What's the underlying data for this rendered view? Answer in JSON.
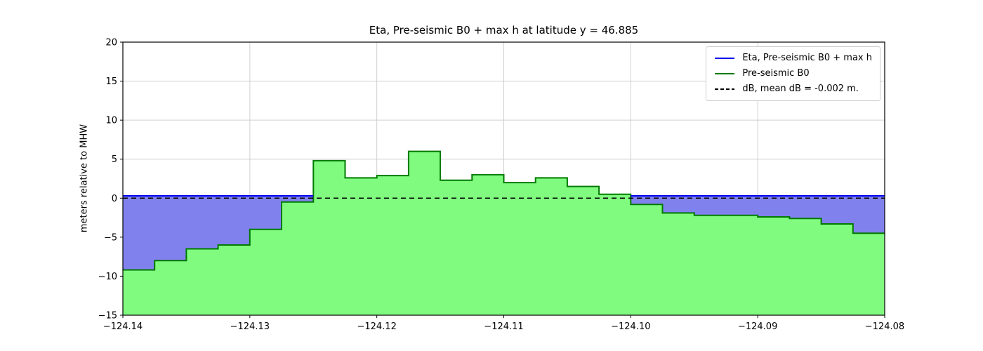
{
  "chart_data": {
    "type": "area",
    "title": "Eta, Pre-seismic B0 + max h at latitude y = 46.885",
    "xlabel": "",
    "ylabel": "meters relative to MHW",
    "xlim": [
      -124.14,
      -124.08
    ],
    "ylim": [
      -15,
      20
    ],
    "grid": true,
    "xticks": [
      {
        "v": -124.14,
        "label": "−124.14"
      },
      {
        "v": -124.13,
        "label": "−124.13"
      },
      {
        "v": -124.12,
        "label": "−124.12"
      },
      {
        "v": -124.11,
        "label": "−124.11"
      },
      {
        "v": -124.1,
        "label": "−124.10"
      },
      {
        "v": -124.09,
        "label": "−124.09"
      },
      {
        "v": -124.08,
        "label": "−124.08"
      }
    ],
    "yticks": [
      {
        "v": -15,
        "label": "−15"
      },
      {
        "v": -10,
        "label": "−10"
      },
      {
        "v": -5,
        "label": "−5"
      },
      {
        "v": 0,
        "label": "0"
      },
      {
        "v": 5,
        "label": "5"
      },
      {
        "v": 10,
        "label": "10"
      },
      {
        "v": 15,
        "label": "15"
      },
      {
        "v": 20,
        "label": "20"
      }
    ],
    "eta_level": 0.3,
    "db_level": -0.002,
    "b0_steps": [
      {
        "x": -124.14,
        "v": -9.2
      },
      {
        "x": -124.1375,
        "v": -8.0
      },
      {
        "x": -124.135,
        "v": -6.5
      },
      {
        "x": -124.1325,
        "v": -6.0
      },
      {
        "x": -124.13,
        "v": -4.0
      },
      {
        "x": -124.1275,
        "v": -0.5
      },
      {
        "x": -124.125,
        "v": 4.8
      },
      {
        "x": -124.1225,
        "v": 2.6
      },
      {
        "x": -124.12,
        "v": 2.9
      },
      {
        "x": -124.1175,
        "v": 6.0
      },
      {
        "x": -124.115,
        "v": 2.3
      },
      {
        "x": -124.1125,
        "v": 3.0
      },
      {
        "x": -124.11,
        "v": 2.0
      },
      {
        "x": -124.1075,
        "v": 2.6
      },
      {
        "x": -124.105,
        "v": 1.5
      },
      {
        "x": -124.1025,
        "v": 0.5
      },
      {
        "x": -124.1,
        "v": -0.8
      },
      {
        "x": -124.0975,
        "v": -1.9
      },
      {
        "x": -124.095,
        "v": -2.2
      },
      {
        "x": -124.09,
        "v": -2.4
      },
      {
        "x": -124.0875,
        "v": -2.6
      },
      {
        "x": -124.085,
        "v": -3.3
      },
      {
        "x": -124.0825,
        "v": -4.5
      },
      {
        "x": -124.08,
        "v": -4.5
      }
    ],
    "legend": {
      "position": "upper right",
      "entries": [
        {
          "label": "Eta, Pre-seismic B0 + max h",
          "color": "#0000ee",
          "style": "solid"
        },
        {
          "label": "Pre-seismic B0",
          "color": "#007a00",
          "style": "solid"
        },
        {
          "label": "dB, mean dB = -0.002 m.",
          "color": "#000000",
          "style": "dashed"
        }
      ]
    },
    "colors": {
      "eta_line": "#0000ee",
      "eta_fill": "#8181ee",
      "b0_line": "#007a00",
      "b0_fill": "#80fb80",
      "db_line": "#000000",
      "grid": "#cfcfcf",
      "frame": "#000000"
    }
  }
}
